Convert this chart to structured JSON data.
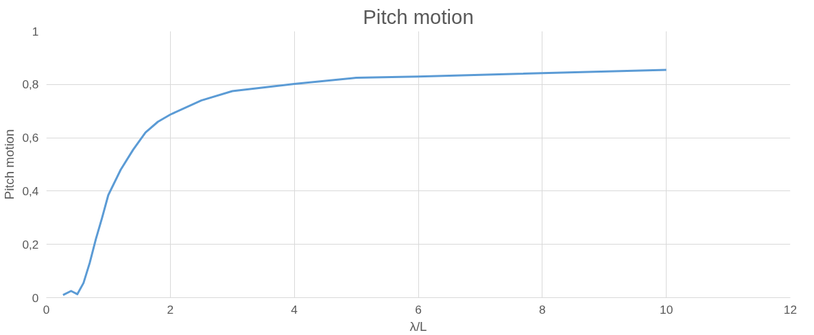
{
  "chart_data": {
    "type": "line",
    "title": "Pitch motion",
    "xlabel": "λ/L",
    "ylabel": "Pitch motion",
    "x": [
      0.27,
      0.4,
      0.5,
      0.6,
      0.7,
      0.8,
      0.9,
      1.0,
      1.2,
      1.4,
      1.6,
      1.8,
      2.0,
      2.5,
      3.0,
      4.0,
      5.0,
      6.0,
      10.0
    ],
    "series": [
      {
        "color": "#5b9bd5",
        "values": [
          0.01,
          0.025,
          0.013,
          0.055,
          0.13,
          0.22,
          0.3,
          0.385,
          0.48,
          0.555,
          0.62,
          0.66,
          0.687,
          0.74,
          0.775,
          0.802,
          0.825,
          0.83,
          0.855
        ]
      }
    ],
    "xlim": [
      0,
      12
    ],
    "xticks": [
      0,
      2,
      4,
      6,
      8,
      10,
      12
    ],
    "ylim": [
      0,
      1
    ],
    "yticks": [
      0,
      {
        "value": 0.2,
        "label": "0,2"
      },
      {
        "value": 0.4,
        "label": "0,4"
      },
      {
        "value": 0.6,
        "label": "0,6"
      },
      {
        "value": 0.8,
        "label": "0,8"
      },
      1
    ],
    "grid": true,
    "marker": "none",
    "line_style": "solid"
  }
}
